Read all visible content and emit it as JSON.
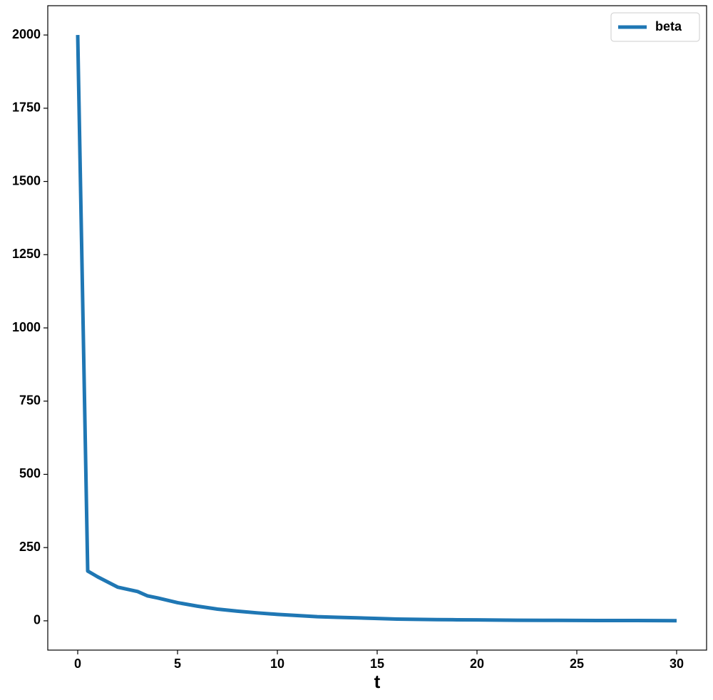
{
  "chart_data": {
    "type": "line",
    "xlabel": "t",
    "x": [
      0,
      0.5,
      1,
      2,
      3,
      3.5,
      4,
      5,
      6,
      7,
      8,
      9,
      10,
      11,
      12,
      13,
      14,
      15,
      16,
      17,
      18,
      19,
      20,
      22,
      24,
      26,
      28,
      30
    ],
    "series": [
      {
        "name": "beta",
        "color": "#1f77b4",
        "values": [
          2000,
          170,
          150,
          115,
          100,
          85,
          78,
          62,
          50,
          40,
          33,
          27,
          22,
          18,
          14,
          12,
          10,
          8,
          6,
          5,
          4,
          3.5,
          3,
          2,
          1.5,
          1,
          1,
          0.5
        ]
      }
    ],
    "xlim": [
      -1.5,
      31.5
    ],
    "xticks": [
      0,
      5,
      10,
      15,
      20,
      25,
      30
    ],
    "ylim": [
      -100,
      2100
    ],
    "yticks": [
      0,
      250,
      500,
      750,
      1000,
      1250,
      1500,
      1750,
      2000
    ],
    "grid": false,
    "legend": "upper right"
  }
}
